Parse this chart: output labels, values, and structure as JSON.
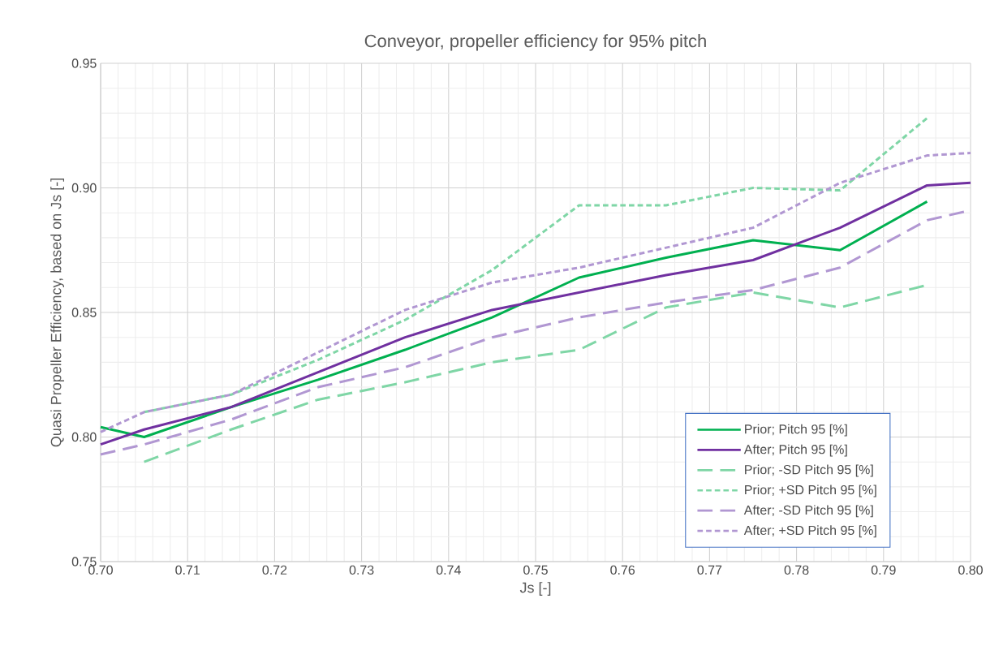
{
  "chart_data": {
    "type": "line",
    "title": "Conveyor, propeller efficiency for 95% pitch",
    "xlabel": "Js [-]",
    "ylabel": "Quasi Propeller Efficiency, based on Js [-]",
    "xlim": [
      0.7,
      0.8
    ],
    "ylim": [
      0.75,
      0.95
    ],
    "xticks": [
      {
        "value": 0.7,
        "label": "0.70"
      },
      {
        "value": 0.71,
        "label": "0.71"
      },
      {
        "value": 0.72,
        "label": "0.72"
      },
      {
        "value": 0.73,
        "label": "0.73"
      },
      {
        "value": 0.74,
        "label": "0.74"
      },
      {
        "value": 0.75,
        "label": "0.75"
      },
      {
        "value": 0.76,
        "label": "0.76"
      },
      {
        "value": 0.77,
        "label": "0.77"
      },
      {
        "value": 0.78,
        "label": "0.78"
      },
      {
        "value": 0.79,
        "label": "0.79"
      },
      {
        "value": 0.8,
        "label": "0.80"
      }
    ],
    "yticks": [
      {
        "value": 0.75,
        "label": "0.75"
      },
      {
        "value": 0.8,
        "label": "0.80"
      },
      {
        "value": 0.85,
        "label": "0.85"
      },
      {
        "value": 0.9,
        "label": "0.90"
      },
      {
        "value": 0.95,
        "label": "0.95"
      }
    ],
    "grid": true,
    "legend": "bottom right",
    "marker": "none",
    "series": [
      {
        "name": "Prior; Pitch 95 [%]",
        "color": "#00b050",
        "line_style": "solid",
        "x": [
          0.7,
          0.705,
          0.715,
          0.725,
          0.735,
          0.745,
          0.755,
          0.765,
          0.775,
          0.785,
          0.795
        ],
        "values": [
          0.804,
          0.8,
          0.812,
          0.823,
          0.835,
          0.848,
          0.864,
          0.872,
          0.879,
          0.875,
          0.8945
        ]
      },
      {
        "name": "After; Pitch 95 [%]",
        "color": "#7030a0",
        "line_style": "solid",
        "x": [
          0.7,
          0.705,
          0.715,
          0.725,
          0.735,
          0.745,
          0.755,
          0.765,
          0.775,
          0.785,
          0.795,
          0.8
        ],
        "values": [
          0.797,
          0.803,
          0.812,
          0.826,
          0.84,
          0.851,
          0.858,
          0.865,
          0.871,
          0.884,
          0.901,
          0.902
        ]
      },
      {
        "name": "Prior; -SD Pitch 95 [%]",
        "color": "#7fd6a6",
        "line_style": "dashed",
        "x": [
          0.705,
          0.715,
          0.725,
          0.735,
          0.745,
          0.755,
          0.765,
          0.775,
          0.785,
          0.795
        ],
        "values": [
          0.79,
          0.803,
          0.815,
          0.822,
          0.83,
          0.835,
          0.852,
          0.858,
          0.852,
          0.861
        ]
      },
      {
        "name": "Prior; +SD Pitch 95 [%]",
        "color": "#7fd6a6",
        "line_style": "dotted",
        "x": [
          0.705,
          0.715,
          0.725,
          0.735,
          0.745,
          0.755,
          0.765,
          0.775,
          0.785,
          0.795
        ],
        "values": [
          0.81,
          0.817,
          0.831,
          0.847,
          0.867,
          0.893,
          0.893,
          0.9,
          0.899,
          0.928
        ]
      },
      {
        "name": "After; -SD Pitch 95 [%]",
        "color": "#b197d2",
        "line_style": "dashed",
        "x": [
          0.7,
          0.705,
          0.715,
          0.725,
          0.735,
          0.745,
          0.755,
          0.765,
          0.775,
          0.785,
          0.795,
          0.8
        ],
        "values": [
          0.793,
          0.797,
          0.807,
          0.82,
          0.828,
          0.84,
          0.848,
          0.854,
          0.859,
          0.868,
          0.887,
          0.891
        ]
      },
      {
        "name": "After; +SD Pitch 95 [%]",
        "color": "#b197d2",
        "line_style": "dotted",
        "x": [
          0.7,
          0.705,
          0.715,
          0.725,
          0.735,
          0.745,
          0.755,
          0.765,
          0.775,
          0.785,
          0.795,
          0.8
        ],
        "values": [
          0.802,
          0.81,
          0.817,
          0.834,
          0.851,
          0.862,
          0.868,
          0.876,
          0.884,
          0.902,
          0.913,
          0.914
        ]
      }
    ]
  }
}
